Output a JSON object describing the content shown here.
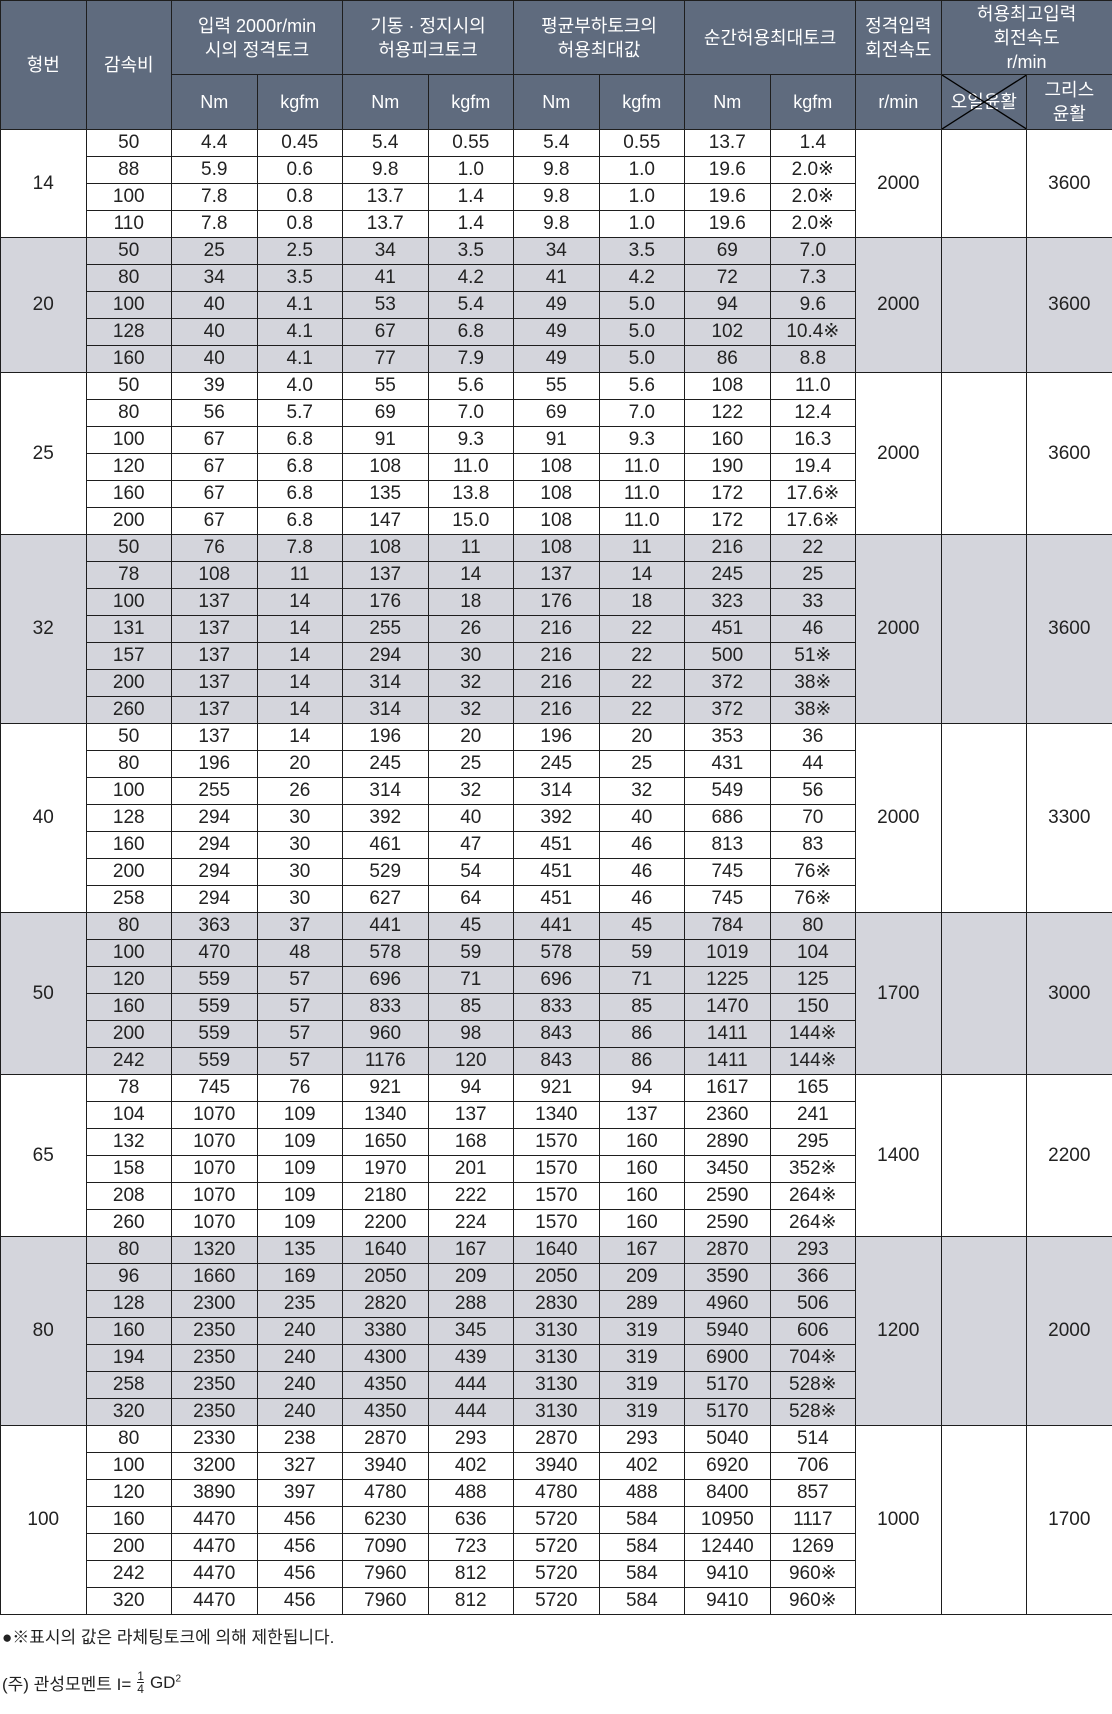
{
  "header": {
    "model": "형번",
    "ratio": "감속비",
    "rated_torque": "입력 2000r/min\n시의 정격토크",
    "peak_torque": "기동 · 정지시의\n허용피크토크",
    "avg_load_torque": "평균부하토크의\n허용최대값",
    "momentary_torque": "순간허용최대토크",
    "rated_speed": "정격입력\n회전속도",
    "max_speed": "허용최고입력\n회전속도\nr/min",
    "unit_nm": "Nm",
    "unit_kgfm": "kgfm",
    "unit_rmin": "r/min",
    "oil": "오일윤활",
    "grease": "그리스\n윤활"
  },
  "colors": {
    "header_bg": "#5f6b7e",
    "alt_group_bg": "#d4d5dc"
  },
  "groups": [
    {
      "model": "14",
      "rated_speed": "2000",
      "grease_speed": "3600",
      "rows": [
        [
          "50",
          "4.4",
          "0.45",
          "5.4",
          "0.55",
          "5.4",
          "0.55",
          "13.7",
          "1.4"
        ],
        [
          "88",
          "5.9",
          "0.6",
          "9.8",
          "1.0",
          "9.8",
          "1.0",
          "19.6",
          "2.0※"
        ],
        [
          "100",
          "7.8",
          "0.8",
          "13.7",
          "1.4",
          "9.8",
          "1.0",
          "19.6",
          "2.0※"
        ],
        [
          "110",
          "7.8",
          "0.8",
          "13.7",
          "1.4",
          "9.8",
          "1.0",
          "19.6",
          "2.0※"
        ]
      ]
    },
    {
      "model": "20",
      "rated_speed": "2000",
      "grease_speed": "3600",
      "rows": [
        [
          "50",
          "25",
          "2.5",
          "34",
          "3.5",
          "34",
          "3.5",
          "69",
          "7.0"
        ],
        [
          "80",
          "34",
          "3.5",
          "41",
          "4.2",
          "41",
          "4.2",
          "72",
          "7.3"
        ],
        [
          "100",
          "40",
          "4.1",
          "53",
          "5.4",
          "49",
          "5.0",
          "94",
          "9.6"
        ],
        [
          "128",
          "40",
          "4.1",
          "67",
          "6.8",
          "49",
          "5.0",
          "102",
          "10.4※"
        ],
        [
          "160",
          "40",
          "4.1",
          "77",
          "7.9",
          "49",
          "5.0",
          "86",
          "8.8"
        ]
      ]
    },
    {
      "model": "25",
      "rated_speed": "2000",
      "grease_speed": "3600",
      "rows": [
        [
          "50",
          "39",
          "4.0",
          "55",
          "5.6",
          "55",
          "5.6",
          "108",
          "11.0"
        ],
        [
          "80",
          "56",
          "5.7",
          "69",
          "7.0",
          "69",
          "7.0",
          "122",
          "12.4"
        ],
        [
          "100",
          "67",
          "6.8",
          "91",
          "9.3",
          "91",
          "9.3",
          "160",
          "16.3"
        ],
        [
          "120",
          "67",
          "6.8",
          "108",
          "11.0",
          "108",
          "11.0",
          "190",
          "19.4"
        ],
        [
          "160",
          "67",
          "6.8",
          "135",
          "13.8",
          "108",
          "11.0",
          "172",
          "17.6※"
        ],
        [
          "200",
          "67",
          "6.8",
          "147",
          "15.0",
          "108",
          "11.0",
          "172",
          "17.6※"
        ]
      ]
    },
    {
      "model": "32",
      "rated_speed": "2000",
      "grease_speed": "3600",
      "rows": [
        [
          "50",
          "76",
          "7.8",
          "108",
          "11",
          "108",
          "11",
          "216",
          "22"
        ],
        [
          "78",
          "108",
          "11",
          "137",
          "14",
          "137",
          "14",
          "245",
          "25"
        ],
        [
          "100",
          "137",
          "14",
          "176",
          "18",
          "176",
          "18",
          "323",
          "33"
        ],
        [
          "131",
          "137",
          "14",
          "255",
          "26",
          "216",
          "22",
          "451",
          "46"
        ],
        [
          "157",
          "137",
          "14",
          "294",
          "30",
          "216",
          "22",
          "500",
          "51※"
        ],
        [
          "200",
          "137",
          "14",
          "314",
          "32",
          "216",
          "22",
          "372",
          "38※"
        ],
        [
          "260",
          "137",
          "14",
          "314",
          "32",
          "216",
          "22",
          "372",
          "38※"
        ]
      ]
    },
    {
      "model": "40",
      "rated_speed": "2000",
      "grease_speed": "3300",
      "rows": [
        [
          "50",
          "137",
          "14",
          "196",
          "20",
          "196",
          "20",
          "353",
          "36"
        ],
        [
          "80",
          "196",
          "20",
          "245",
          "25",
          "245",
          "25",
          "431",
          "44"
        ],
        [
          "100",
          "255",
          "26",
          "314",
          "32",
          "314",
          "32",
          "549",
          "56"
        ],
        [
          "128",
          "294",
          "30",
          "392",
          "40",
          "392",
          "40",
          "686",
          "70"
        ],
        [
          "160",
          "294",
          "30",
          "461",
          "47",
          "451",
          "46",
          "813",
          "83"
        ],
        [
          "200",
          "294",
          "30",
          "529",
          "54",
          "451",
          "46",
          "745",
          "76※"
        ],
        [
          "258",
          "294",
          "30",
          "627",
          "64",
          "451",
          "46",
          "745",
          "76※"
        ]
      ]
    },
    {
      "model": "50",
      "rated_speed": "1700",
      "grease_speed": "3000",
      "rows": [
        [
          "80",
          "363",
          "37",
          "441",
          "45",
          "441",
          "45",
          "784",
          "80"
        ],
        [
          "100",
          "470",
          "48",
          "578",
          "59",
          "578",
          "59",
          "1019",
          "104"
        ],
        [
          "120",
          "559",
          "57",
          "696",
          "71",
          "696",
          "71",
          "1225",
          "125"
        ],
        [
          "160",
          "559",
          "57",
          "833",
          "85",
          "833",
          "85",
          "1470",
          "150"
        ],
        [
          "200",
          "559",
          "57",
          "960",
          "98",
          "843",
          "86",
          "1411",
          "144※"
        ],
        [
          "242",
          "559",
          "57",
          "1176",
          "120",
          "843",
          "86",
          "1411",
          "144※"
        ]
      ]
    },
    {
      "model": "65",
      "rated_speed": "1400",
      "grease_speed": "2200",
      "rows": [
        [
          "78",
          "745",
          "76",
          "921",
          "94",
          "921",
          "94",
          "1617",
          "165"
        ],
        [
          "104",
          "1070",
          "109",
          "1340",
          "137",
          "1340",
          "137",
          "2360",
          "241"
        ],
        [
          "132",
          "1070",
          "109",
          "1650",
          "168",
          "1570",
          "160",
          "2890",
          "295"
        ],
        [
          "158",
          "1070",
          "109",
          "1970",
          "201",
          "1570",
          "160",
          "3450",
          "352※"
        ],
        [
          "208",
          "1070",
          "109",
          "2180",
          "222",
          "1570",
          "160",
          "2590",
          "264※"
        ],
        [
          "260",
          "1070",
          "109",
          "2200",
          "224",
          "1570",
          "160",
          "2590",
          "264※"
        ]
      ]
    },
    {
      "model": "80",
      "rated_speed": "1200",
      "grease_speed": "2000",
      "rows": [
        [
          "80",
          "1320",
          "135",
          "1640",
          "167",
          "1640",
          "167",
          "2870",
          "293"
        ],
        [
          "96",
          "1660",
          "169",
          "2050",
          "209",
          "2050",
          "209",
          "3590",
          "366"
        ],
        [
          "128",
          "2300",
          "235",
          "2820",
          "288",
          "2830",
          "289",
          "4960",
          "506"
        ],
        [
          "160",
          "2350",
          "240",
          "3380",
          "345",
          "3130",
          "319",
          "5940",
          "606"
        ],
        [
          "194",
          "2350",
          "240",
          "4300",
          "439",
          "3130",
          "319",
          "6900",
          "704※"
        ],
        [
          "258",
          "2350",
          "240",
          "4350",
          "444",
          "3130",
          "319",
          "5170",
          "528※"
        ],
        [
          "320",
          "2350",
          "240",
          "4350",
          "444",
          "3130",
          "319",
          "5170",
          "528※"
        ]
      ]
    },
    {
      "model": "100",
      "rated_speed": "1000",
      "grease_speed": "1700",
      "rows": [
        [
          "80",
          "2330",
          "238",
          "2870",
          "293",
          "2870",
          "293",
          "5040",
          "514"
        ],
        [
          "100",
          "3200",
          "327",
          "3940",
          "402",
          "3940",
          "402",
          "6920",
          "706"
        ],
        [
          "120",
          "3890",
          "397",
          "4780",
          "488",
          "4780",
          "488",
          "8400",
          "857"
        ],
        [
          "160",
          "4470",
          "456",
          "6230",
          "636",
          "5720",
          "584",
          "10950",
          "1117"
        ],
        [
          "200",
          "4470",
          "456",
          "7090",
          "723",
          "5720",
          "584",
          "12440",
          "1269"
        ],
        [
          "242",
          "4470",
          "456",
          "7960",
          "812",
          "5720",
          "584",
          "9410",
          "960※"
        ],
        [
          "320",
          "4470",
          "456",
          "7960",
          "812",
          "5720",
          "584",
          "9410",
          "960※"
        ]
      ]
    }
  ],
  "notes": {
    "ratchet_note": "●※표시의 값은 라체팅토크에 의해 제한됩니다.",
    "inertia_prefix": "(주) 관성모멘트  I=",
    "frac_num": "1",
    "frac_den": "4",
    "inertia_suffix": "GD",
    "inertia_exp": "2"
  }
}
